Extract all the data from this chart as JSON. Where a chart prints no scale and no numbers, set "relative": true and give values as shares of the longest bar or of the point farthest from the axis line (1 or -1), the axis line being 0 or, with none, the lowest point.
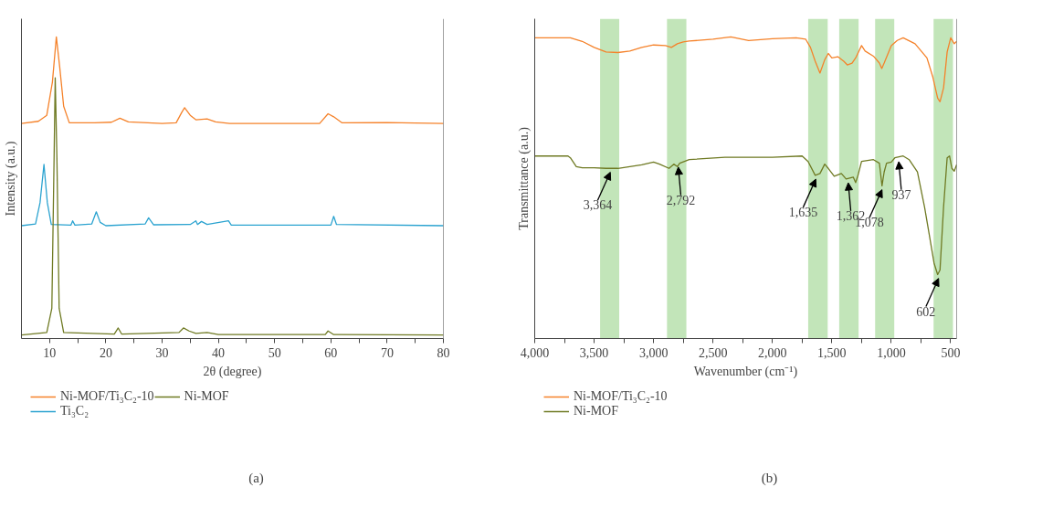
{
  "chart_data": [
    {
      "type": "line",
      "title": "(a)",
      "xlabel": "2θ (degree)",
      "ylabel": "Intensity (a.u.)",
      "relative": true,
      "legend": "bottom",
      "grid": false,
      "xlim": [
        5,
        80
      ],
      "xticks": [
        10,
        {
          "value": 15,
          "label": null
        },
        20,
        {
          "value": 25,
          "label": null
        },
        30,
        {
          "value": 35,
          "label": null
        },
        40,
        {
          "value": 45,
          "label": null
        },
        50,
        {
          "value": 55,
          "label": null
        },
        60,
        {
          "value": 65,
          "label": null
        },
        70,
        {
          "value": 75,
          "label": null
        },
        80
      ],
      "series": [
        {
          "name": "Ni-MOF/Ti₃C₂-10",
          "color": "#f5822a",
          "x": [
            5,
            8,
            9.5,
            10.5,
            11.2,
            11.8,
            12.5,
            13.5,
            18,
            21,
            22.5,
            24,
            30,
            32.5,
            33.5,
            34,
            35,
            36,
            38,
            39.5,
            42,
            58,
            59.5,
            60.5,
            62,
            70,
            80
          ],
          "values": [
            0.713,
            0.72,
            0.74,
            0.85,
            1.0,
            0.9,
            0.77,
            0.715,
            0.715,
            0.717,
            0.73,
            0.718,
            0.713,
            0.715,
            0.75,
            0.765,
            0.74,
            0.725,
            0.728,
            0.718,
            0.713,
            0.713,
            0.745,
            0.735,
            0.715,
            0.716,
            0.713
          ]
        },
        {
          "name": "Ti₃C₂",
          "color": "#2ba3d0",
          "x": [
            5,
            7.5,
            8.3,
            9,
            9.6,
            10.3,
            13.8,
            14.1,
            14.5,
            17.5,
            18.3,
            19,
            20,
            27,
            27.6,
            28.5,
            35,
            36,
            36.3,
            37,
            38,
            41.8,
            42.3,
            60,
            60.5,
            61,
            80
          ],
          "values": [
            0.374,
            0.38,
            0.45,
            0.577,
            0.45,
            0.378,
            0.376,
            0.39,
            0.376,
            0.38,
            0.42,
            0.385,
            0.374,
            0.38,
            0.4,
            0.377,
            0.378,
            0.39,
            0.378,
            0.388,
            0.378,
            0.39,
            0.376,
            0.376,
            0.405,
            0.378,
            0.374
          ]
        },
        {
          "name": "Ni-MOF",
          "color": "#6f7a23",
          "x": [
            5,
            9.5,
            10.4,
            10.8,
            11,
            11.3,
            11.7,
            12.5,
            21.5,
            22.2,
            22.8,
            33,
            33.8,
            34.8,
            36,
            38,
            40,
            59,
            59.5,
            60.5,
            80
          ],
          "values": [
            0.012,
            0.02,
            0.1,
            0.6,
            0.864,
            0.6,
            0.1,
            0.02,
            0.015,
            0.035,
            0.015,
            0.02,
            0.035,
            0.025,
            0.017,
            0.02,
            0.013,
            0.013,
            0.025,
            0.013,
            0.012
          ]
        }
      ]
    },
    {
      "type": "line",
      "title": "(b)",
      "xlabel": "Wavenumber (cm⁻¹)",
      "ylabel": "Transmittance (a.u.)",
      "relative": true,
      "legend": "bottom",
      "grid": false,
      "xlim": [
        4000,
        450
      ],
      "xticks": [
        {
          "value": 4000,
          "label": "4,000"
        },
        {
          "value": 3750,
          "label": null
        },
        {
          "value": 3500,
          "label": "3,500"
        },
        {
          "value": 3250,
          "label": null
        },
        {
          "value": 3000,
          "label": "3,000"
        },
        {
          "value": 2750,
          "label": null
        },
        {
          "value": 2500,
          "label": "2,500"
        },
        {
          "value": 2250,
          "label": null
        },
        {
          "value": 2000,
          "label": "2,000"
        },
        {
          "value": 1750,
          "label": null
        },
        {
          "value": 1500,
          "label": "1,500"
        },
        {
          "value": 1250,
          "label": null
        },
        {
          "value": 1000,
          "label": "1,000"
        },
        {
          "value": 750,
          "label": null
        },
        500
      ],
      "bands": [
        {
          "axis": "x",
          "from": 3450,
          "to": 3289,
          "color": "#8fcf7f"
        },
        {
          "axis": "x",
          "from": 2887,
          "to": 2724,
          "color": "#8fcf7f"
        },
        {
          "axis": "x",
          "from": 1699,
          "to": 1535,
          "color": "#8fcf7f"
        },
        {
          "axis": "x",
          "from": 1438,
          "to": 1275,
          "color": "#8fcf7f"
        },
        {
          "axis": "x",
          "from": 1136,
          "to": 975,
          "color": "#8fcf7f"
        },
        {
          "axis": "x",
          "from": 644,
          "to": 481,
          "color": "#8fcf7f"
        }
      ],
      "annotations": [
        {
          "text": "3,364",
          "x": 3364,
          "y": 0.564
        },
        {
          "text": "2,792",
          "x": 2792,
          "y": 0.581
        },
        {
          "text": "1,635",
          "x": 1635,
          "y": 0.541
        },
        {
          "text": "1,362",
          "x": 1362,
          "y": 0.529
        },
        {
          "text": "1,078",
          "x": 1078,
          "y": 0.506
        },
        {
          "text": "937",
          "x": 937,
          "y": 0.599
        },
        {
          "text": "602",
          "x": 602,
          "y": 0.212
        }
      ],
      "series": [
        {
          "name": "Ni-MOF/Ti₃C₂-10",
          "color": "#f5822a",
          "x": [
            4000,
            3700,
            3600,
            3500,
            3400,
            3300,
            3200,
            3100,
            3000,
            2900,
            2850,
            2800,
            2750,
            2700,
            2500,
            2350,
            2200,
            2000,
            1800,
            1720,
            1680,
            1640,
            1600,
            1560,
            1530,
            1500,
            1450,
            1400,
            1370,
            1330,
            1300,
            1250,
            1220,
            1150,
            1100,
            1080,
            1060,
            1000,
            950,
            900,
            800,
            700,
            650,
            610,
            590,
            560,
            530,
            500,
            470,
            450
          ],
          "values": [
            0.997,
            0.997,
            0.985,
            0.965,
            0.95,
            0.948,
            0.953,
            0.965,
            0.973,
            0.971,
            0.965,
            0.977,
            0.983,
            0.986,
            0.992,
            1.0,
            0.988,
            0.994,
            0.997,
            0.992,
            0.965,
            0.919,
            0.88,
            0.924,
            0.945,
            0.93,
            0.934,
            0.919,
            0.907,
            0.913,
            0.93,
            0.971,
            0.953,
            0.936,
            0.913,
            0.895,
            0.913,
            0.971,
            0.988,
            0.997,
            0.977,
            0.93,
            0.866,
            0.797,
            0.785,
            0.831,
            0.95,
            0.997,
            0.977,
            0.985
          ]
        },
        {
          "name": "Ni-MOF",
          "color": "#6f7a23",
          "x": [
            4000,
            3720,
            3700,
            3650,
            3600,
            3500,
            3400,
            3300,
            3100,
            3000,
            2950,
            2870,
            2830,
            2800,
            2780,
            2700,
            2400,
            2000,
            1750,
            1700,
            1640,
            1600,
            1560,
            1530,
            1480,
            1420,
            1380,
            1320,
            1300,
            1280,
            1250,
            1150,
            1100,
            1078,
            1060,
            1040,
            1000,
            970,
            900,
            850,
            780,
            720,
            670,
            640,
            610,
            590,
            560,
            530,
            510,
            490,
            470,
            450
          ],
          "values": [
            0.605,
            0.605,
            0.599,
            0.57,
            0.566,
            0.566,
            0.564,
            0.564,
            0.576,
            0.585,
            0.578,
            0.564,
            0.578,
            0.57,
            0.581,
            0.593,
            0.601,
            0.601,
            0.605,
            0.587,
            0.541,
            0.547,
            0.578,
            0.564,
            0.538,
            0.547,
            0.529,
            0.535,
            0.517,
            0.541,
            0.587,
            0.593,
            0.581,
            0.506,
            0.552,
            0.581,
            0.585,
            0.599,
            0.605,
            0.593,
            0.552,
            0.436,
            0.32,
            0.25,
            0.212,
            0.227,
            0.436,
            0.599,
            0.605,
            0.564,
            0.555,
            0.576
          ]
        }
      ]
    }
  ]
}
